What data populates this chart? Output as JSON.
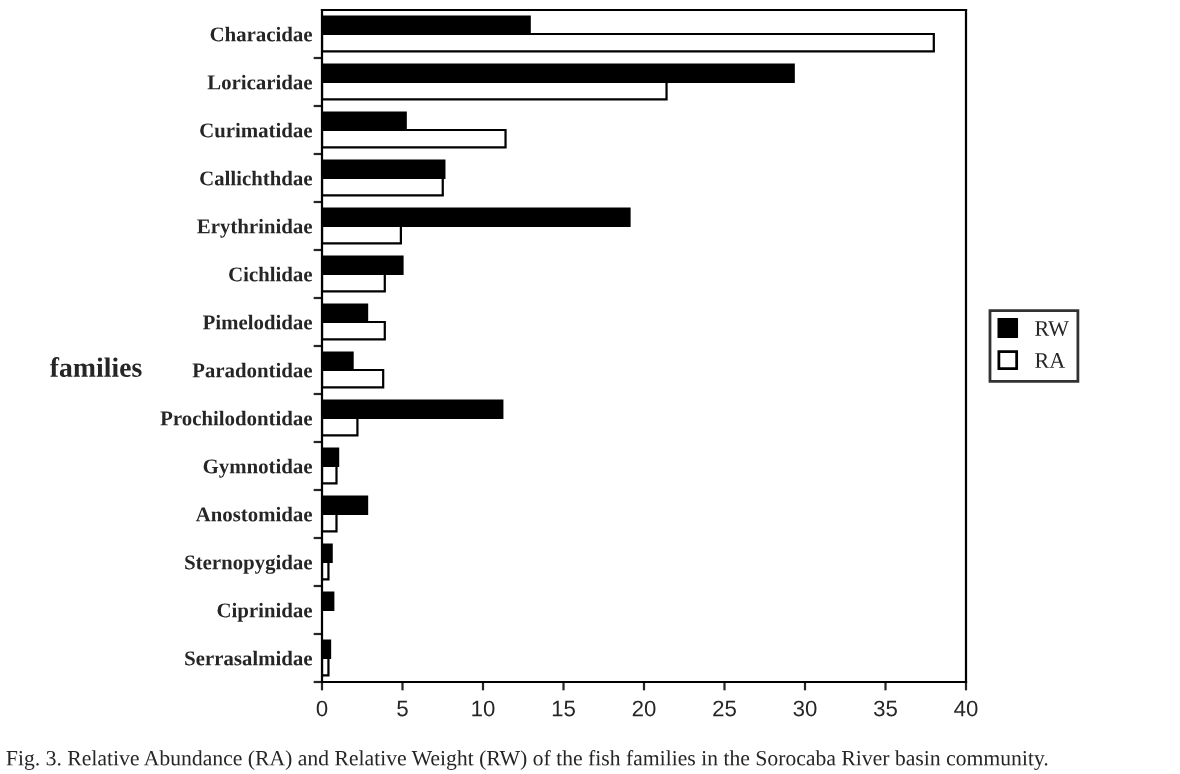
{
  "chart_data": {
    "type": "bar",
    "orientation": "horizontal",
    "categories": [
      "Characidae",
      "Loricaridae",
      "Curimatidae",
      "Callichthdae",
      "Erythrinidae",
      "Cichlidae",
      "Pimelodidae",
      "Paradontidae",
      "Prochilodontidae",
      "Gymnotidae",
      "Anostomidae",
      "Sternopygidae",
      "Ciprinidae",
      "Serrasalmidae"
    ],
    "series": [
      {
        "name": "RW",
        "color": "#000000",
        "values": [
          12.9,
          29.3,
          5.2,
          7.6,
          19.1,
          5.0,
          2.8,
          1.9,
          11.2,
          1.0,
          2.8,
          0.6,
          0.7,
          0.5
        ]
      },
      {
        "name": "RA",
        "color": "#ffffff",
        "values": [
          38.0,
          21.4,
          11.4,
          7.5,
          4.9,
          3.9,
          3.9,
          3.8,
          2.2,
          0.9,
          0.9,
          0.4,
          null,
          0.4
        ]
      }
    ],
    "xlim": [
      0,
      40
    ],
    "xticks": [
      0,
      5,
      10,
      15,
      20,
      25,
      30,
      35,
      40
    ],
    "ylabel": "families",
    "legend": "right",
    "grid": false,
    "annotations": [
      "Fig. 3. Relative Abundance (RA) and Relative Weight (RW) of the fish families in the Sorocaba River basin community."
    ]
  }
}
